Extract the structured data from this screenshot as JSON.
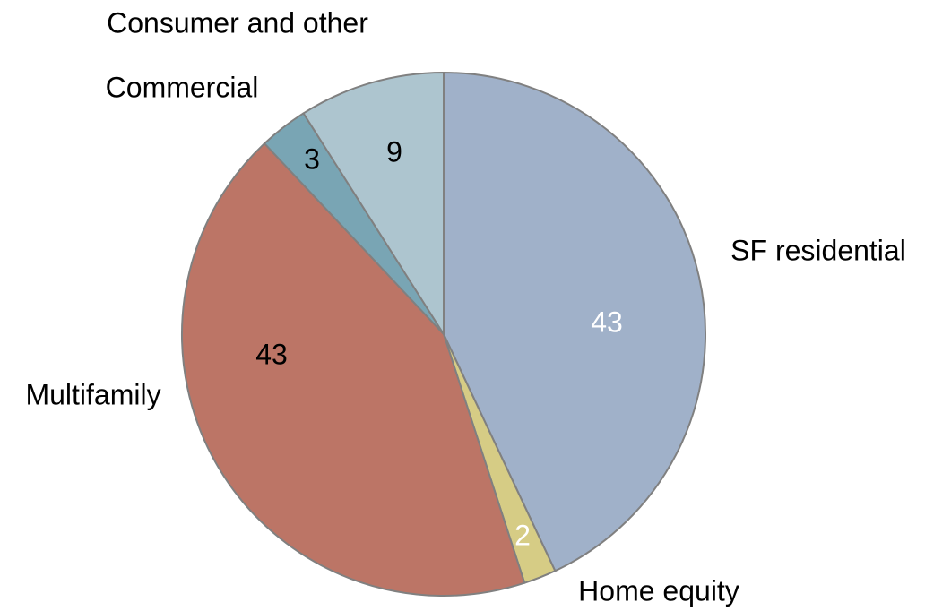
{
  "chart_data": {
    "type": "pie",
    "categories": [
      "SF residential",
      "Home equity",
      "Multifamily",
      "Commercial",
      "Consumer and other"
    ],
    "values": [
      43,
      2,
      43,
      3,
      9
    ],
    "colors": [
      "#a0b1c9",
      "#d6cc85",
      "#bc7566",
      "#79a5b4",
      "#adc5cf"
    ],
    "label_colors": [
      "#ffffff",
      "#ffffff",
      "#000000",
      "#000000",
      "#000000"
    ]
  }
}
